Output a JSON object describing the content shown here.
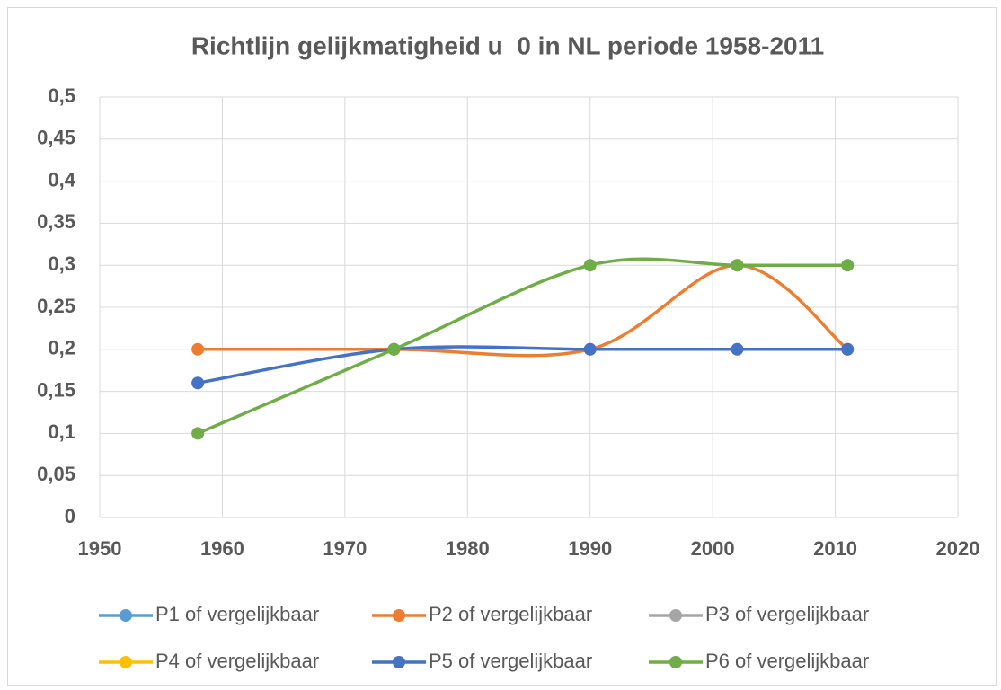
{
  "chart_data": {
    "type": "scatter-smooth",
    "title": "Richtlijn gelijkmatigheid u_0 in NL periode 1958-2011",
    "x": [
      1958,
      1974,
      1990,
      2002,
      2011
    ],
    "series": [
      {
        "name": "P1 of vergelijkbaar",
        "color": "#5b9bd5",
        "values": [
          null,
          null,
          null,
          null,
          null
        ]
      },
      {
        "name": "P2 of vergelijkbaar",
        "color": "#ed7d31",
        "values": [
          0.2,
          0.2,
          0.2,
          0.3,
          0.2
        ]
      },
      {
        "name": "P3 of vergelijkbaar",
        "color": "#a5a5a5",
        "values": [
          null,
          null,
          null,
          null,
          null
        ]
      },
      {
        "name": "P4 of vergelijkbaar",
        "color": "#ffc000",
        "values": [
          null,
          null,
          null,
          null,
          null
        ]
      },
      {
        "name": "P5 of vergelijkbaar",
        "color": "#4472c4",
        "values": [
          0.16,
          0.2,
          0.2,
          0.2,
          0.2
        ]
      },
      {
        "name": "P6 of vergelijkbaar",
        "color": "#70ad47",
        "values": [
          0.1,
          0.2,
          0.3,
          0.3,
          0.3
        ]
      }
    ],
    "xlim": [
      1950,
      2020
    ],
    "xticks": [
      1950,
      1960,
      1970,
      1980,
      1990,
      2000,
      2010,
      2020
    ],
    "ylim": [
      0,
      0.5
    ],
    "yticks": [
      0,
      {
        "value": 0.05,
        "label": "0,05"
      },
      {
        "value": 0.1,
        "label": "0,1"
      },
      {
        "value": 0.15,
        "label": "0,15"
      },
      {
        "value": 0.2,
        "label": "0,2"
      },
      {
        "value": 0.25,
        "label": "0,25"
      },
      {
        "value": 0.3,
        "label": "0,3"
      },
      {
        "value": 0.35,
        "label": "0,35"
      },
      {
        "value": 0.4,
        "label": "0,4"
      },
      {
        "value": 0.45,
        "label": "0,45"
      },
      {
        "value": 0.5,
        "label": "0,5"
      }
    ],
    "grid": true,
    "legend": "bottom"
  }
}
